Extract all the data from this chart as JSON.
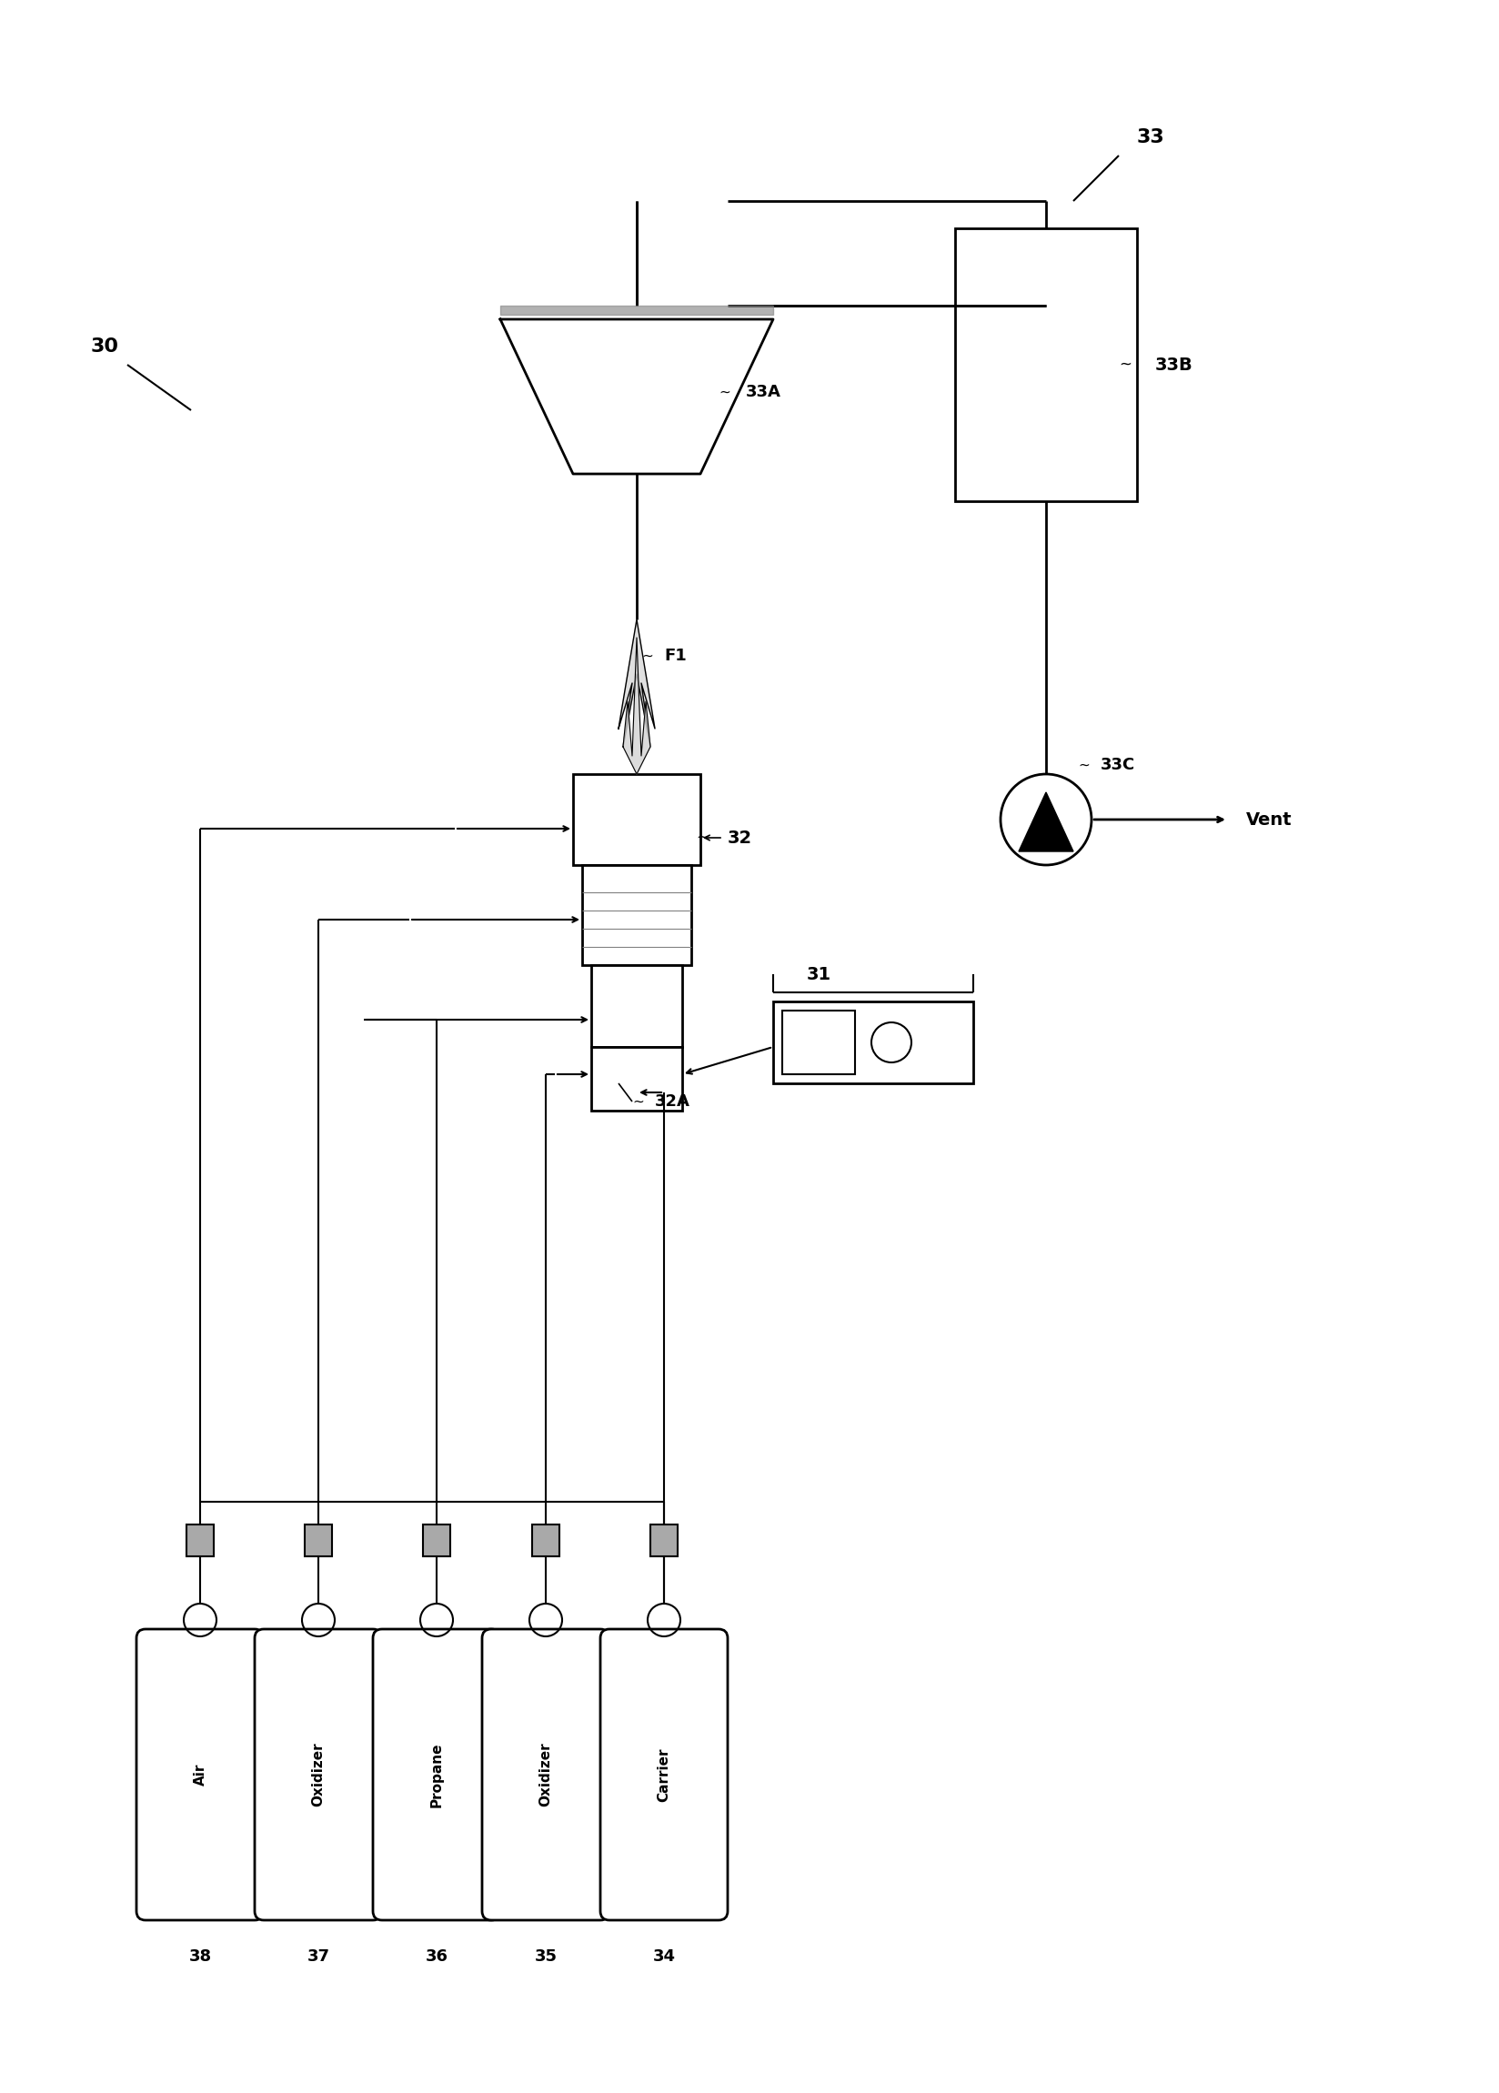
{
  "bg_color": "#ffffff",
  "line_color": "#000000",
  "fig_label": "30",
  "component_33_label": "33",
  "component_33A_label": "33A",
  "component_33B_label": "33B",
  "component_33C_label": "33C",
  "component_32_label": "32",
  "component_32A_label": "32A",
  "component_31_label": "31",
  "component_F1_label": "F1",
  "gas_labels": [
    "Air",
    "Oxidizer",
    "Propane",
    "Oxidizer",
    "Carrier"
  ],
  "gas_numbers": [
    "38",
    "37",
    "36",
    "35",
    "34"
  ],
  "vent_label": "Vent"
}
